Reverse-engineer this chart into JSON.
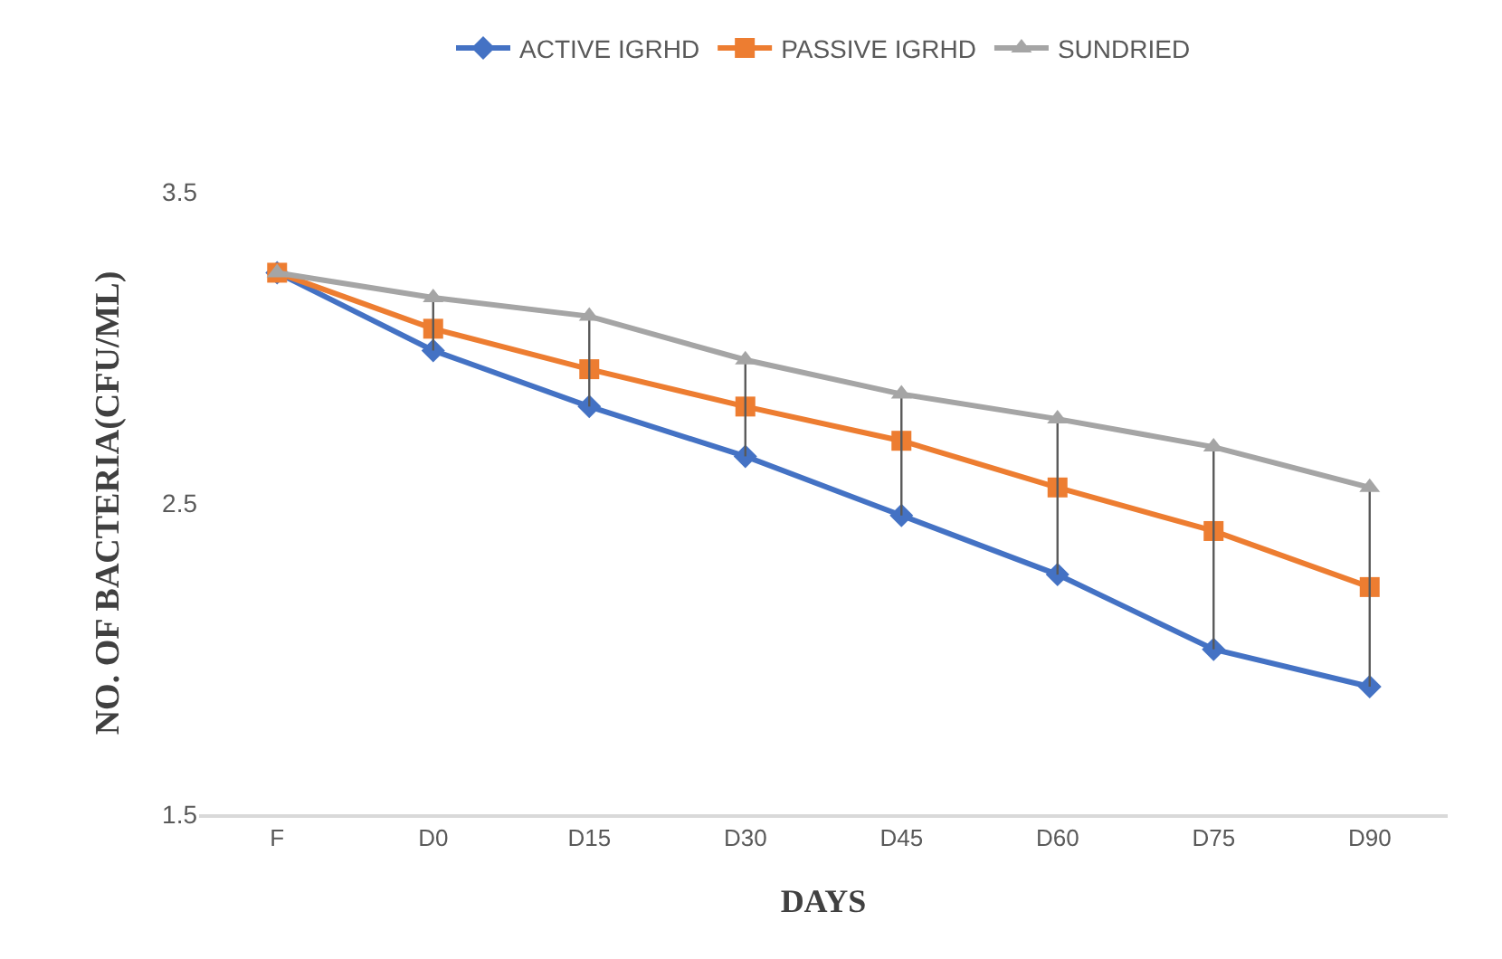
{
  "chart_data": {
    "type": "line",
    "xlabel": "DAYS",
    "ylabel": "NO. OF BACTERIA(CFU/ML)",
    "categories": [
      "F",
      "D0",
      "D15",
      "D30",
      "D45",
      "D60",
      "D75",
      "D90"
    ],
    "series": [
      {
        "name": "ACTIVE IGRHD",
        "color": "#4472c4",
        "marker": "diamond",
        "values": [
          3.24,
          2.99,
          2.81,
          2.65,
          2.46,
          2.27,
          2.03,
          1.91
        ]
      },
      {
        "name": "PASSIVE IGRHD",
        "color": "#ed7d31",
        "marker": "square",
        "values": [
          3.24,
          3.06,
          2.93,
          2.81,
          2.7,
          2.55,
          2.41,
          2.23
        ]
      },
      {
        "name": "SUNDRIED",
        "color": "#a5a5a5",
        "marker": "triangle",
        "values": [
          3.24,
          3.16,
          3.1,
          2.96,
          2.85,
          2.77,
          2.68,
          2.55
        ],
        "errors": [
          null,
          [
            2.99,
            3.16
          ],
          [
            2.81,
            3.1
          ],
          [
            2.65,
            2.96
          ],
          [
            2.46,
            2.85
          ],
          [
            2.27,
            2.77
          ],
          [
            2.03,
            2.68
          ],
          [
            1.91,
            2.55
          ]
        ]
      }
    ],
    "ylim": [
      1.5,
      3.5
    ],
    "yticks": [
      1.5,
      2.5,
      3.5
    ],
    "grid": false,
    "legend": "top"
  }
}
